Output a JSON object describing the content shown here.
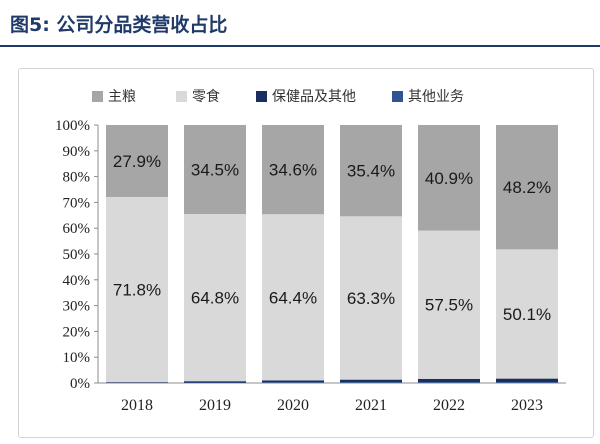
{
  "title": "图5:  公司分品类营收占比",
  "chart_data": {
    "type": "bar",
    "stacked": true,
    "categories": [
      "2018",
      "2019",
      "2020",
      "2021",
      "2022",
      "2023"
    ],
    "series": [
      {
        "name": "其他业务",
        "color": "#2e5592",
        "values": [
          0.0,
          0.2,
          0.3,
          0.3,
          0.3,
          0.3
        ]
      },
      {
        "name": "保健品及其他",
        "color": "#1b2f5e",
        "values": [
          0.3,
          0.5,
          0.7,
          1.0,
          1.3,
          1.4
        ]
      },
      {
        "name": "零食",
        "color": "#d9d9d9",
        "values": [
          71.8,
          64.8,
          64.4,
          63.3,
          57.5,
          50.1
        ]
      },
      {
        "name": "主粮",
        "color": "#a6a6a6",
        "values": [
          27.9,
          34.5,
          34.6,
          35.4,
          40.9,
          48.2
        ]
      }
    ],
    "data_labels": {
      "主粮": [
        "27.9%",
        "34.5%",
        "34.6%",
        "35.4%",
        "40.9%",
        "48.2%"
      ],
      "零食": [
        "71.8%",
        "64.8%",
        "64.4%",
        "63.3%",
        "57.5%",
        "50.1%"
      ]
    },
    "legend_order": [
      "主粮",
      "零食",
      "保健品及其他",
      "其他业务"
    ],
    "y_ticks": [
      "0%",
      "10%",
      "20%",
      "30%",
      "40%",
      "50%",
      "60%",
      "70%",
      "80%",
      "90%",
      "100%"
    ],
    "ylim": [
      0,
      100
    ],
    "legend_position": "top",
    "grid": false
  }
}
